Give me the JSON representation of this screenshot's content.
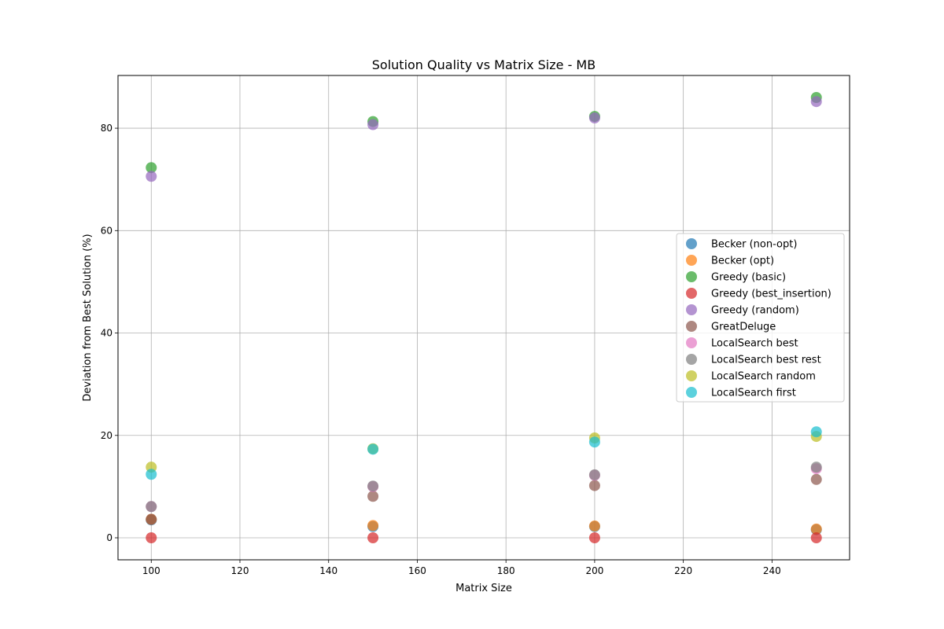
{
  "chart_data": {
    "type": "scatter",
    "title": "Solution Quality vs Matrix Size - MB",
    "xlabel": "Matrix Size",
    "ylabel": "Deviation from Best Solution (%)",
    "xlim": [
      92.5,
      257.5
    ],
    "ylim": [
      -4.3,
      90.3
    ],
    "xticks": [
      100,
      120,
      140,
      160,
      180,
      200,
      220,
      240
    ],
    "yticks": [
      0,
      20,
      40,
      60,
      80
    ],
    "grid": true,
    "legend_position": "center-right",
    "series": [
      {
        "name": "Becker (non-opt)",
        "color": "#1f77b4",
        "points": [
          [
            100,
            3.5
          ],
          [
            150,
            2.2
          ],
          [
            200,
            2.2
          ],
          [
            250,
            1.6
          ]
        ]
      },
      {
        "name": "Becker (opt)",
        "color": "#ff7f0e",
        "points": [
          [
            100,
            3.6
          ],
          [
            150,
            2.4
          ],
          [
            200,
            2.3
          ],
          [
            250,
            1.7
          ]
        ]
      },
      {
        "name": "Greedy (basic)",
        "color": "#2ca02c",
        "points": [
          [
            100,
            72.3
          ],
          [
            150,
            81.3
          ],
          [
            200,
            82.3
          ],
          [
            250,
            86.0
          ]
        ]
      },
      {
        "name": "Greedy (best_insertion)",
        "color": "#d62728",
        "points": [
          [
            100,
            0.0
          ],
          [
            150,
            0.0
          ],
          [
            200,
            0.0
          ],
          [
            250,
            0.0
          ]
        ]
      },
      {
        "name": "Greedy (random)",
        "color": "#9467bd",
        "points": [
          [
            100,
            70.6
          ],
          [
            150,
            80.7
          ],
          [
            200,
            82.0
          ],
          [
            250,
            85.2
          ]
        ]
      },
      {
        "name": "GreatDeluge",
        "color": "#8c564b",
        "points": [
          [
            100,
            3.6
          ],
          [
            150,
            8.1
          ],
          [
            200,
            10.2
          ],
          [
            250,
            11.4
          ]
        ]
      },
      {
        "name": "LocalSearch best",
        "color": "#e377c2",
        "points": [
          [
            100,
            6.1
          ],
          [
            150,
            10.0
          ],
          [
            200,
            12.2
          ],
          [
            250,
            13.5
          ]
        ]
      },
      {
        "name": "LocalSearch best rest",
        "color": "#7f7f7f",
        "points": [
          [
            100,
            6.1
          ],
          [
            150,
            10.1
          ],
          [
            200,
            12.3
          ],
          [
            250,
            13.8
          ]
        ]
      },
      {
        "name": "LocalSearch random",
        "color": "#bcbd22",
        "points": [
          [
            100,
            13.8
          ],
          [
            150,
            17.4
          ],
          [
            200,
            19.5
          ],
          [
            250,
            19.8
          ]
        ]
      },
      {
        "name": "LocalSearch first",
        "color": "#17becf",
        "points": [
          [
            100,
            12.4
          ],
          [
            150,
            17.3
          ],
          [
            200,
            18.7
          ],
          [
            250,
            20.7
          ]
        ]
      }
    ]
  }
}
